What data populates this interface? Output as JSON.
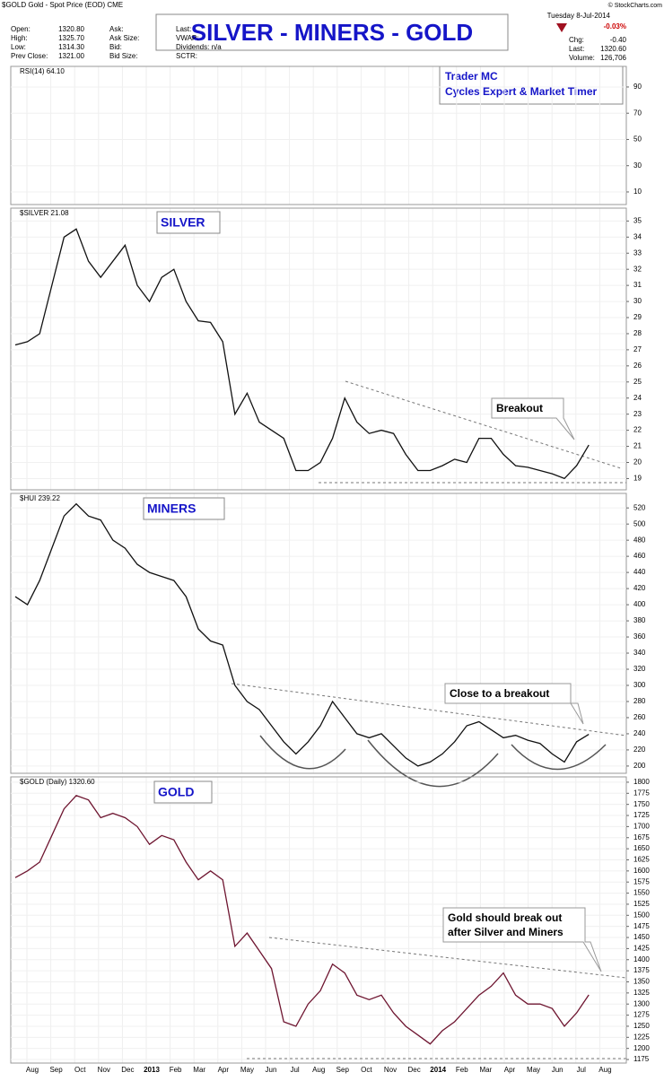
{
  "header": {
    "symbol_line": "$GOLD Gold - Spot Price (EOD) CME",
    "copyright": "© StockCharts.com",
    "quote_left": [
      [
        "Open:",
        "1320.80"
      ],
      [
        "High:",
        "1325.70"
      ],
      [
        "Low:",
        "1314.30"
      ],
      [
        "Prev Close:",
        "1321.00"
      ]
    ],
    "quote_mid": [
      "Ask:",
      "Ask Size:",
      "Bid:",
      "Bid Size:"
    ],
    "quote_mid2": [
      "Last:",
      "VWAP:",
      "Dividends: n/a",
      "SCTR:"
    ],
    "date": "Tuesday 8-Jul-2014",
    "change_pct": "-0.03%",
    "quote_right": [
      [
        "Chg:",
        "-0.40"
      ],
      [
        "Last:",
        "1320.60"
      ],
      [
        "Volume:",
        "126,706"
      ]
    ],
    "title": "SILVER - MINERS - GOLD",
    "author": [
      "Trader MC",
      "Cycles Expert & Market Timer"
    ]
  },
  "x_axis": {
    "labels": [
      "Aug",
      "Sep",
      "Oct",
      "Nov",
      "Dec",
      "2013",
      "Feb",
      "Mar",
      "Apr",
      "May",
      "Jun",
      "Jul",
      "Aug",
      "Sep",
      "Oct",
      "Nov",
      "Dec",
      "2014",
      "Feb",
      "Mar",
      "Apr",
      "May",
      "Jun",
      "Jul",
      "Aug"
    ]
  },
  "chart_data": [
    {
      "type": "line",
      "label": "RSI(14) 64.10",
      "ylim": [
        0.4,
        105.7
      ],
      "yticks": [
        10,
        30,
        50,
        70,
        90
      ],
      "grid": true,
      "series": []
    },
    {
      "type": "line",
      "label": "$SILVER 21.08",
      "title": "SILVER",
      "ylim": [
        18.3,
        35.8
      ],
      "yticks": [
        19,
        20,
        21,
        22,
        23,
        24,
        25,
        26,
        27,
        28,
        29,
        30,
        31,
        32,
        33,
        34,
        35
      ],
      "grid": true,
      "annotations": [
        [
          "Breakout"
        ]
      ],
      "series": [
        {
          "name": "$SILVER",
          "color": "#111111",
          "values": [
            27.3,
            27.5,
            28,
            31,
            34,
            34.5,
            32.5,
            31.5,
            32.5,
            33.5,
            31,
            30,
            31.5,
            32,
            30,
            28.8,
            28.7,
            27.5,
            23,
            24.3,
            22.5,
            22,
            21.5,
            19.5,
            19.5,
            20,
            21.5,
            24,
            22.5,
            21.8,
            22,
            21.8,
            20.5,
            19.5,
            19.5,
            19.8,
            20.2,
            20,
            21.5,
            21.5,
            20.5,
            19.8,
            19.7,
            19.5,
            19.3,
            19,
            19.8,
            21.08
          ]
        }
      ]
    },
    {
      "type": "line",
      "label": "$HUI 239.22",
      "title": "MINERS",
      "ylim": [
        191,
        538
      ],
      "yticks": [
        200,
        220,
        240,
        260,
        280,
        300,
        320,
        340,
        360,
        380,
        400,
        420,
        440,
        460,
        480,
        500,
        520
      ],
      "grid": true,
      "annotations": [
        [
          "Close to a breakout"
        ]
      ],
      "series": [
        {
          "name": "$HUI",
          "color": "#111111",
          "values": [
            410,
            400,
            430,
            470,
            510,
            525,
            510,
            505,
            480,
            470,
            450,
            440,
            435,
            430,
            410,
            370,
            355,
            350,
            300,
            280,
            270,
            250,
            230,
            215,
            230,
            250,
            280,
            260,
            240,
            235,
            240,
            225,
            210,
            200,
            205,
            215,
            230,
            250,
            255,
            245,
            235,
            238,
            232,
            228,
            215,
            205,
            230,
            239.22
          ]
        }
      ]
    },
    {
      "type": "line",
      "label": "$GOLD (Daily) 1320.60",
      "title": "GOLD",
      "ylim": [
        1167,
        1812
      ],
      "yticks": [
        1175,
        1200,
        1225,
        1250,
        1275,
        1300,
        1325,
        1350,
        1375,
        1400,
        1425,
        1450,
        1475,
        1500,
        1525,
        1550,
        1575,
        1600,
        1625,
        1650,
        1675,
        1700,
        1725,
        1750,
        1775,
        1800
      ],
      "grid": true,
      "annotations": [
        [
          "Gold should break out",
          "after Silver and Miners"
        ]
      ],
      "series": [
        {
          "name": "$GOLD",
          "color": "#6e1530",
          "values": [
            1585,
            1600,
            1620,
            1680,
            1740,
            1770,
            1760,
            1720,
            1730,
            1720,
            1700,
            1660,
            1680,
            1670,
            1620,
            1580,
            1600,
            1580,
            1430,
            1460,
            1420,
            1380,
            1260,
            1250,
            1300,
            1330,
            1390,
            1370,
            1320,
            1310,
            1320,
            1280,
            1250,
            1230,
            1210,
            1240,
            1260,
            1290,
            1320,
            1340,
            1370,
            1320,
            1300,
            1300,
            1290,
            1250,
            1280,
            1320.6
          ]
        }
      ]
    }
  ]
}
